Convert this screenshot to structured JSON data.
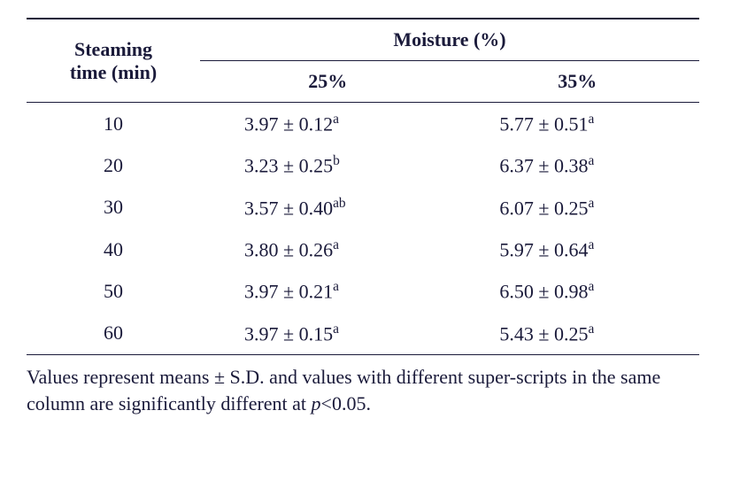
{
  "table": {
    "type": "table",
    "background_color": "#ffffff",
    "border_color": "#1a1a3a",
    "text_color": "#1a1a3a",
    "rowhead_top": "Steaming",
    "rowhead_bottom": "time (min)",
    "spanner_label": "Moisture (%)",
    "subheaders": {
      "col25": "25%",
      "col35": "35%"
    },
    "rows": [
      {
        "time": "10",
        "c25": "3.97 ± 0.12",
        "s25": "a",
        "c35": "5.77 ± 0.51",
        "s35": "a"
      },
      {
        "time": "20",
        "c25": "3.23 ± 0.25",
        "s25": "b",
        "c35": "6.37 ± 0.38",
        "s35": "a"
      },
      {
        "time": "30",
        "c25": "3.57 ± 0.40",
        "s25": "ab",
        "c35": "6.07 ± 0.25",
        "s35": "a"
      },
      {
        "time": "40",
        "c25": "3.80 ± 0.26",
        "s25": "a",
        "c35": "5.97 ± 0.64",
        "s35": "a"
      },
      {
        "time": "50",
        "c25": "3.97 ± 0.21",
        "s25": "a",
        "c35": "6.50 ± 0.98",
        "s35": "a"
      },
      {
        "time": "60",
        "c25": "3.97 ± 0.15",
        "s25": "a",
        "c35": "5.43 ± 0.25",
        "s35": "a"
      }
    ]
  },
  "caption": {
    "pre": "Values represent means ± S.D. and values with different super-scripts in the same column are significantly different at ",
    "ital": "p",
    "post": "<0.05."
  }
}
